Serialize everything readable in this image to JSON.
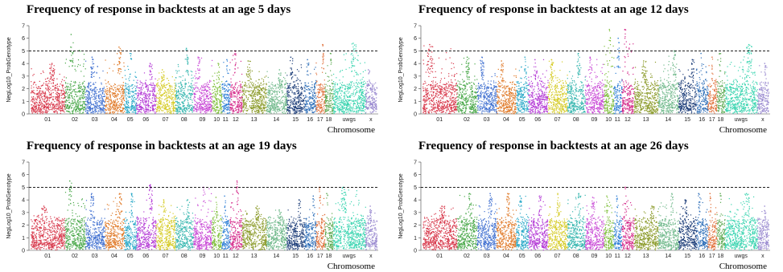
{
  "chart_data": [
    {
      "type": "scatter",
      "title": "Frequency of response in backtests at an age 5 days",
      "xlabel": "Chromosome",
      "ylabel": "NegLog10_ProbGenotype",
      "ylim": [
        0,
        7
      ],
      "yticks": [
        0,
        1,
        2,
        3,
        4,
        5,
        6,
        7
      ],
      "threshold": 5,
      "categories": [
        "01",
        "02",
        "03",
        "04",
        "05",
        "06",
        "07",
        "08",
        "09",
        "10",
        "11",
        "12",
        "13",
        "14",
        "15",
        "16",
        "17",
        "18",
        "uwgs",
        "x"
      ],
      "peaks": [
        4.0,
        6.3,
        4.5,
        5.3,
        4.8,
        4.0,
        3.5,
        5.2,
        4.5,
        4.0,
        4.3,
        5.0,
        4.2,
        3.5,
        4.5,
        4.3,
        5.5,
        4.8,
        5.6,
        3.5
      ]
    },
    {
      "type": "scatter",
      "title": "Frequency of response in backtests at an age 12 days",
      "xlabel": "Chromosome",
      "ylabel": "NegLog10_ProbGenotype",
      "ylim": [
        0,
        7
      ],
      "yticks": [
        0,
        1,
        2,
        3,
        4,
        5,
        6,
        7
      ],
      "threshold": 5,
      "categories": [
        "01",
        "02",
        "03",
        "04",
        "05",
        "06",
        "07",
        "08",
        "09",
        "10",
        "11",
        "12",
        "13",
        "14",
        "15",
        "16",
        "17",
        "18",
        "uwgs",
        "x"
      ],
      "peaks": [
        5.5,
        4.5,
        4.5,
        4.2,
        4.5,
        4.3,
        4.3,
        4.8,
        4.5,
        6.7,
        6.0,
        6.7,
        4.2,
        5.0,
        4.3,
        4.8,
        4.5,
        4.8,
        5.5,
        4.0
      ]
    },
    {
      "type": "scatter",
      "title": "Frequency of response in backtests at an age 19 days",
      "xlabel": "Chromosome",
      "ylabel": "NegLog10_ProbGenotype",
      "ylim": [
        0,
        7
      ],
      "yticks": [
        0,
        1,
        2,
        3,
        4,
        5,
        6,
        7
      ],
      "threshold": 5,
      "categories": [
        "01",
        "02",
        "03",
        "04",
        "05",
        "06",
        "07",
        "08",
        "09",
        "10",
        "11",
        "12",
        "13",
        "14",
        "15",
        "16",
        "17",
        "18",
        "uwgs",
        "x"
      ],
      "peaks": [
        3.5,
        5.5,
        4.5,
        4.5,
        4.5,
        5.2,
        4.0,
        4.0,
        5.0,
        4.2,
        4.3,
        5.5,
        3.5,
        3.2,
        4.0,
        4.3,
        5.0,
        4.5,
        5.0,
        3.5
      ]
    },
    {
      "type": "scatter",
      "title": "Frequency of response in backtests at an age 26 days",
      "xlabel": "Chromosome",
      "ylabel": "NegLog10_ProbGenotype",
      "ylim": [
        0,
        7
      ],
      "yticks": [
        0,
        1,
        2,
        3,
        4,
        5,
        6,
        7
      ],
      "threshold": 5,
      "categories": [
        "01",
        "02",
        "03",
        "04",
        "05",
        "06",
        "07",
        "08",
        "09",
        "10",
        "11",
        "12",
        "13",
        "14",
        "15",
        "16",
        "17",
        "18",
        "uwgs",
        "x"
      ],
      "peaks": [
        3.5,
        4.5,
        4.5,
        4.5,
        4.3,
        4.3,
        4.5,
        4.5,
        4.2,
        4.3,
        4.3,
        5.0,
        3.5,
        4.5,
        4.0,
        4.5,
        4.5,
        4.5,
        4.5,
        3.5
      ]
    }
  ],
  "colors": {
    "01": "#d83a4d",
    "02": "#4aa84a",
    "03": "#3f6fd0",
    "04": "#e07b2a",
    "05": "#2aa9c8",
    "06": "#b53cd6",
    "07": "#d6cc2a",
    "08": "#38b7b0",
    "09": "#c94ad6",
    "10": "#7fbf3a",
    "11": "#2e7fd6",
    "12": "#d42a8a",
    "13": "#8a9a28",
    "14": "#6fb88a",
    "15": "#1f3f7a",
    "16": "#2f6fb8",
    "17": "#e0703a",
    "18": "#5aa84f",
    "uwgs": "#3ad4b0",
    "x": "#9a8ad0",
    "threshold": "#000000"
  }
}
